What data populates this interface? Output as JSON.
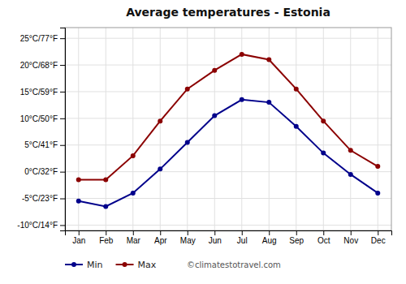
{
  "chart_data": {
    "type": "line",
    "title": "Average temperatures - Estonia",
    "categories": [
      "Jan",
      "Feb",
      "Mar",
      "Apr",
      "May",
      "Jun",
      "Jul",
      "Aug",
      "Sep",
      "Oct",
      "Nov",
      "Dec"
    ],
    "series": [
      {
        "name": "Min",
        "color": "#00008B",
        "marker": "circle",
        "values": [
          -5.5,
          -6.5,
          -4.0,
          0.5,
          5.5,
          10.5,
          13.5,
          13.0,
          8.5,
          3.5,
          -0.5,
          -4.0
        ]
      },
      {
        "name": "Max",
        "color": "#8B0000",
        "marker": "circle",
        "values": [
          -1.5,
          -1.5,
          3.0,
          9.5,
          15.5,
          19.0,
          22.0,
          21.0,
          15.5,
          9.5,
          4.0,
          1.0
        ]
      }
    ],
    "ylim": [
      -11,
      27
    ],
    "yticks": [
      {
        "value": -10,
        "label": "-10°C/14°F"
      },
      {
        "value": -5,
        "label": "-5°C/23°F"
      },
      {
        "value": 0,
        "label": "0°C/32°F"
      },
      {
        "value": 5,
        "label": "5°C/41°F"
      },
      {
        "value": 10,
        "label": "10°C/50°F"
      },
      {
        "value": 15,
        "label": "15°C/59°F"
      },
      {
        "value": 20,
        "label": "20°C/68°F"
      },
      {
        "value": 25,
        "label": "25°C/77°F"
      }
    ],
    "grid": true,
    "legend": "bottom",
    "annotation": "©climatestotravel.com"
  }
}
